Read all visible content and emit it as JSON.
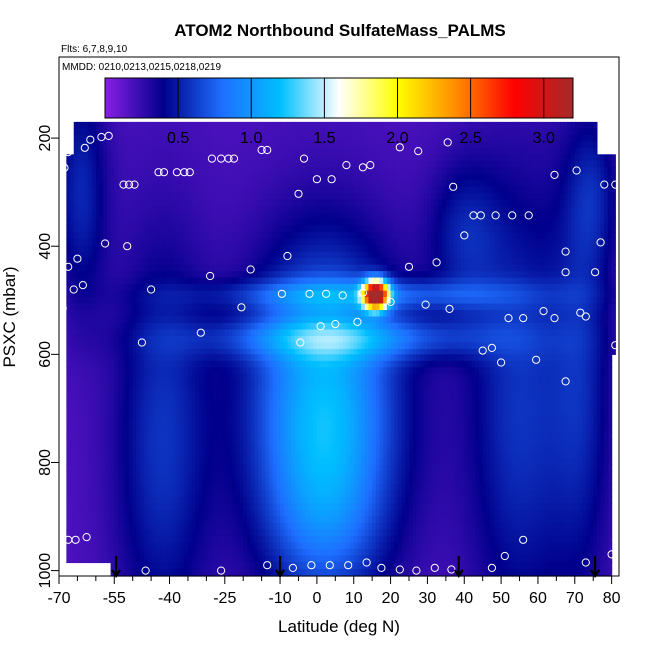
{
  "chart_data": {
    "type": "heatmap",
    "title": "ATOM2 Northbound SulfateMass_PALMS",
    "subtitle_flights": "Flts: 6,7,8,9,10",
    "subtitle_dates": "MMDD: 0210,0213,0215,0218,0219",
    "xlabel": "Latitude (deg N)",
    "ylabel": "PSXC (mbar)",
    "xlim": [
      -70,
      82
    ],
    "ylim": [
      1010,
      50
    ],
    "x_ticks": [
      -70,
      -55,
      -40,
      -25,
      -10,
      0,
      10,
      20,
      30,
      40,
      50,
      60,
      70,
      80
    ],
    "x_minor_ticks": [
      -65,
      -60,
      -50,
      -45,
      -35,
      -30,
      -20,
      -15,
      -5,
      5,
      15,
      25,
      35,
      45,
      55,
      65,
      75
    ],
    "y_ticks": [
      200,
      400,
      600,
      800,
      1000
    ],
    "colorbar": {
      "range": [
        0,
        3.2
      ],
      "ticks": [
        0.5,
        1.0,
        1.5,
        2.0,
        2.5,
        3.0
      ],
      "tick_labels": [
        "0.5",
        "1.0",
        "1.5",
        "2.0",
        "2.5",
        "3.0"
      ],
      "colors": [
        "#8a1fe6",
        "#00008b",
        "#1e6eff",
        "#00bfff",
        "#ffffff",
        "#ffff00",
        "#ff8c00",
        "#ff0000",
        "#a52a2a"
      ]
    },
    "field_blobs": [
      {
        "x": 2,
        "y": 700,
        "sx": 14,
        "sy": 200,
        "amp": 1.0
      },
      {
        "x": 2,
        "y": 920,
        "sx": 11,
        "sy": 110,
        "amp": 0.25
      },
      {
        "x": 8,
        "y": 570,
        "sx": 28,
        "sy": 28,
        "amp": 0.5
      },
      {
        "x": 16,
        "y": 490,
        "sx": 2.3,
        "sy": 18,
        "amp": 3.0
      },
      {
        "x": 13,
        "y": 490,
        "sx": 30,
        "sy": 20,
        "amp": 0.45
      },
      {
        "x": -42,
        "y": 760,
        "sx": 9,
        "sy": 260,
        "amp": 0.4
      },
      {
        "x": 55,
        "y": 700,
        "sx": 10,
        "sy": 300,
        "amp": 0.4
      },
      {
        "x": 72,
        "y": 650,
        "sx": 6,
        "sy": 280,
        "amp": 0.3
      },
      {
        "x": -64,
        "y": 300,
        "sx": 5,
        "sy": 150,
        "amp": 0.35
      },
      {
        "x": 75,
        "y": 300,
        "sx": 5,
        "sy": 100,
        "amp": 0.25
      },
      {
        "x": 40,
        "y": 380,
        "sx": 7,
        "sy": 100,
        "amp": 0.3
      }
    ],
    "field_regions": [
      {
        "lat": [
          -66,
          76
        ],
        "p": [
          170,
          230
        ]
      },
      {
        "lat": [
          -68,
          81
        ],
        "p": [
          230,
          600
        ]
      },
      {
        "lat": [
          -68,
          80
        ],
        "p": [
          600,
          985
        ]
      },
      {
        "lat": [
          -56,
          80
        ],
        "p": [
          985,
          1010
        ]
      }
    ],
    "sample_points": [
      {
        "x": -56.5,
        "y": 196
      },
      {
        "x": -58.5,
        "y": 198
      },
      {
        "x": -61.5,
        "y": 203
      },
      {
        "x": -63.0,
        "y": 218
      },
      {
        "x": -67.5,
        "y": 226
      },
      {
        "x": -68.5,
        "y": 255
      },
      {
        "x": -52.5,
        "y": 286
      },
      {
        "x": -51.0,
        "y": 286
      },
      {
        "x": -49.5,
        "y": 286
      },
      {
        "x": -43.0,
        "y": 263
      },
      {
        "x": -41.5,
        "y": 263
      },
      {
        "x": -38.0,
        "y": 263
      },
      {
        "x": -36.0,
        "y": 263
      },
      {
        "x": -34.5,
        "y": 263
      },
      {
        "x": -28.5,
        "y": 238
      },
      {
        "x": -26.0,
        "y": 238
      },
      {
        "x": -24.0,
        "y": 238
      },
      {
        "x": -22.5,
        "y": 238
      },
      {
        "x": -15.0,
        "y": 222
      },
      {
        "x": -13.5,
        "y": 222
      },
      {
        "x": -3.5,
        "y": 238
      },
      {
        "x": -5.0,
        "y": 303
      },
      {
        "x": 0.0,
        "y": 276
      },
      {
        "x": 4.0,
        "y": 276
      },
      {
        "x": 8.0,
        "y": 250
      },
      {
        "x": 12.5,
        "y": 254
      },
      {
        "x": 14.5,
        "y": 250
      },
      {
        "x": 22.5,
        "y": 217
      },
      {
        "x": 27.5,
        "y": 224
      },
      {
        "x": 35.5,
        "y": 208
      },
      {
        "x": 37.0,
        "y": 290
      },
      {
        "x": 40.0,
        "y": 380
      },
      {
        "x": 42.5,
        "y": 343
      },
      {
        "x": 44.5,
        "y": 343
      },
      {
        "x": 48.5,
        "y": 343
      },
      {
        "x": 53.0,
        "y": 343
      },
      {
        "x": 57.5,
        "y": 343
      },
      {
        "x": 64.5,
        "y": 268
      },
      {
        "x": 70.5,
        "y": 260
      },
      {
        "x": 78.0,
        "y": 286
      },
      {
        "x": 81.0,
        "y": 286
      },
      {
        "x": -57.5,
        "y": 395
      },
      {
        "x": -67.5,
        "y": 438
      },
      {
        "x": -65.0,
        "y": 423
      },
      {
        "x": -51.5,
        "y": 400
      },
      {
        "x": -63.5,
        "y": 472
      },
      {
        "x": -66.0,
        "y": 480
      },
      {
        "x": -69.0,
        "y": 515
      },
      {
        "x": -45.0,
        "y": 480
      },
      {
        "x": -29.0,
        "y": 455
      },
      {
        "x": -18.0,
        "y": 443
      },
      {
        "x": -20.5,
        "y": 513
      },
      {
        "x": -31.5,
        "y": 560
      },
      {
        "x": -47.5,
        "y": 578
      },
      {
        "x": -8.0,
        "y": 418
      },
      {
        "x": -9.5,
        "y": 488
      },
      {
        "x": -2.0,
        "y": 488
      },
      {
        "x": 2.5,
        "y": 488
      },
      {
        "x": 7.0,
        "y": 491
      },
      {
        "x": 12.5,
        "y": 486
      },
      {
        "x": 20.0,
        "y": 503
      },
      {
        "x": 11.0,
        "y": 540
      },
      {
        "x": 1.0,
        "y": 548
      },
      {
        "x": 5.0,
        "y": 544
      },
      {
        "x": -4.5,
        "y": 578
      },
      {
        "x": 25.0,
        "y": 438
      },
      {
        "x": 29.5,
        "y": 508
      },
      {
        "x": 32.5,
        "y": 430
      },
      {
        "x": 36.0,
        "y": 516
      },
      {
        "x": 45.0,
        "y": 593
      },
      {
        "x": 47.5,
        "y": 588
      },
      {
        "x": 50.0,
        "y": 615
      },
      {
        "x": 52.0,
        "y": 533
      },
      {
        "x": 56.0,
        "y": 533
      },
      {
        "x": 59.5,
        "y": 610
      },
      {
        "x": 61.5,
        "y": 520
      },
      {
        "x": 64.5,
        "y": 533
      },
      {
        "x": 67.5,
        "y": 410
      },
      {
        "x": 67.5,
        "y": 448
      },
      {
        "x": 67.5,
        "y": 650
      },
      {
        "x": 71.5,
        "y": 523
      },
      {
        "x": 73.0,
        "y": 530
      },
      {
        "x": 75.5,
        "y": 448
      },
      {
        "x": 77.0,
        "y": 393
      },
      {
        "x": 81.0,
        "y": 583
      },
      {
        "x": -67.5,
        "y": 943
      },
      {
        "x": -65.5,
        "y": 943
      },
      {
        "x": -62.5,
        "y": 938
      },
      {
        "x": -46.5,
        "y": 1000
      },
      {
        "x": -26.0,
        "y": 1000
      },
      {
        "x": -13.5,
        "y": 990
      },
      {
        "x": -6.5,
        "y": 995
      },
      {
        "x": -1.5,
        "y": 990
      },
      {
        "x": 3.5,
        "y": 990
      },
      {
        "x": 8.5,
        "y": 990
      },
      {
        "x": 13.5,
        "y": 985
      },
      {
        "x": 17.5,
        "y": 995
      },
      {
        "x": 22.5,
        "y": 998
      },
      {
        "x": 27.0,
        "y": 1000
      },
      {
        "x": 32.0,
        "y": 995
      },
      {
        "x": 36.5,
        "y": 998
      },
      {
        "x": 47.5,
        "y": 995
      },
      {
        "x": 51.0,
        "y": 973
      },
      {
        "x": 56.0,
        "y": 943
      },
      {
        "x": 73.0,
        "y": 985
      },
      {
        "x": 80.0,
        "y": 970
      }
    ],
    "profile_arrows": [
      -54.5,
      -10.0,
      38.5,
      75.5
    ]
  }
}
